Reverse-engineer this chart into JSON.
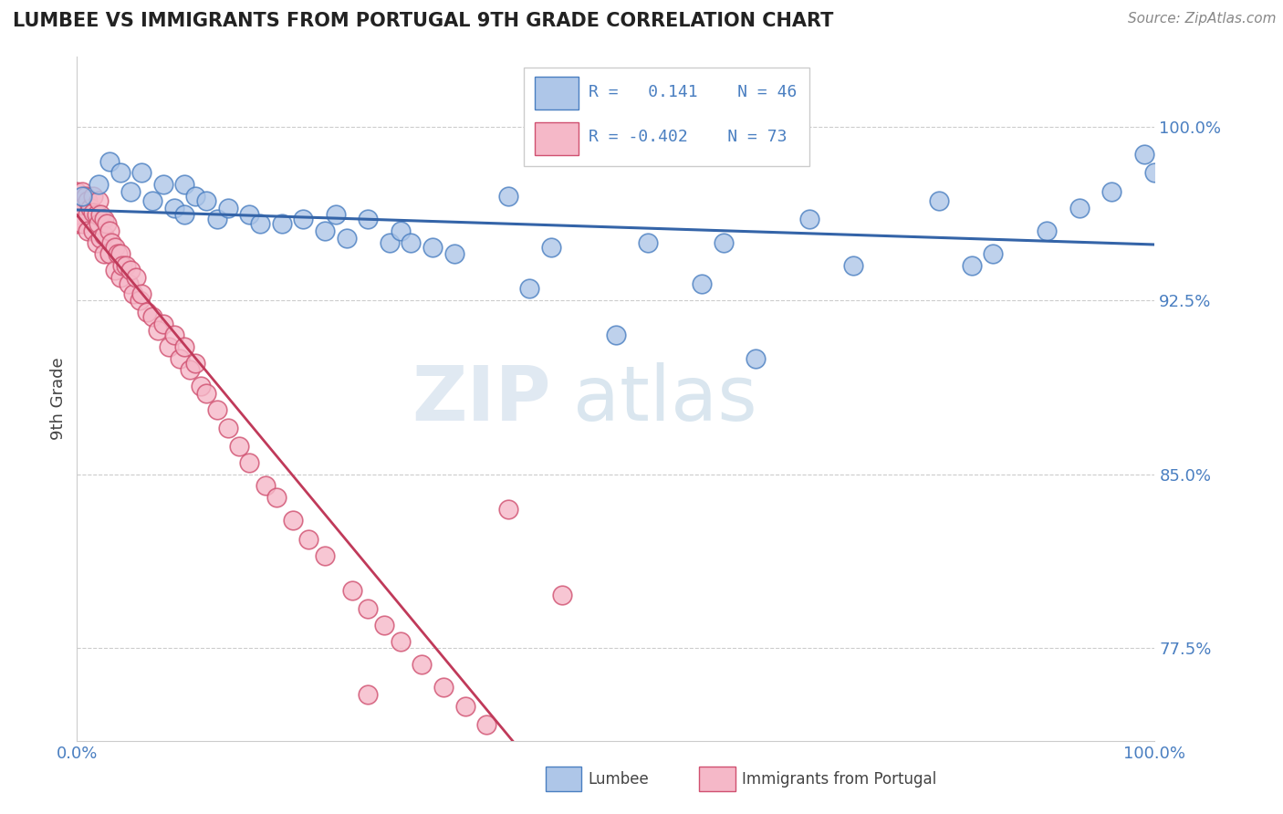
{
  "title": "LUMBEE VS IMMIGRANTS FROM PORTUGAL 9TH GRADE CORRELATION CHART",
  "source_text": "Source: ZipAtlas.com",
  "ylabel": "9th Grade",
  "xlim": [
    0.0,
    1.0
  ],
  "ylim": [
    0.735,
    1.03
  ],
  "yticks": [
    0.775,
    0.85,
    0.925,
    1.0
  ],
  "ytick_labels": [
    "77.5%",
    "85.0%",
    "92.5%",
    "100.0%"
  ],
  "legend_r_blue": "R =   0.141",
  "legend_n_blue": "N = 46",
  "legend_r_pink": "R = -0.402",
  "legend_n_pink": "N = 73",
  "blue_scatter_color": "#aec6e8",
  "blue_edge_color": "#4a7fc1",
  "pink_scatter_color": "#f5b8c8",
  "pink_edge_color": "#d05070",
  "line_blue_color": "#3464a8",
  "line_pink_solid_color": "#c03a5a",
  "line_pink_dash_color": "#d0b0b8",
  "watermark_color": "#d0dff0",
  "title_color": "#222222",
  "axis_label_color": "#444444",
  "tick_label_color": "#4a7fc1",
  "source_color": "#888888",
  "legend_border_color": "#cccccc",
  "blue_x": [
    0.005,
    0.02,
    0.03,
    0.04,
    0.05,
    0.06,
    0.07,
    0.08,
    0.09,
    0.1,
    0.1,
    0.11,
    0.12,
    0.13,
    0.14,
    0.16,
    0.17,
    0.19,
    0.21,
    0.23,
    0.24,
    0.25,
    0.27,
    0.29,
    0.3,
    0.31,
    0.33,
    0.35,
    0.4,
    0.42,
    0.44,
    0.5,
    0.53,
    0.58,
    0.6,
    0.63,
    0.68,
    0.72,
    0.8,
    0.83,
    0.85,
    0.9,
    0.93,
    0.96,
    0.99,
    1.0
  ],
  "blue_y": [
    0.97,
    0.975,
    0.985,
    0.98,
    0.972,
    0.98,
    0.968,
    0.975,
    0.965,
    0.975,
    0.962,
    0.97,
    0.968,
    0.96,
    0.965,
    0.962,
    0.958,
    0.958,
    0.96,
    0.955,
    0.962,
    0.952,
    0.96,
    0.95,
    0.955,
    0.95,
    0.948,
    0.945,
    0.97,
    0.93,
    0.948,
    0.91,
    0.95,
    0.932,
    0.95,
    0.9,
    0.96,
    0.94,
    0.968,
    0.94,
    0.945,
    0.955,
    0.965,
    0.972,
    0.988,
    0.98
  ],
  "pink_x": [
    0.0,
    0.0,
    0.0,
    0.0,
    0.005,
    0.005,
    0.005,
    0.008,
    0.01,
    0.01,
    0.01,
    0.012,
    0.015,
    0.015,
    0.015,
    0.018,
    0.018,
    0.02,
    0.02,
    0.022,
    0.022,
    0.025,
    0.025,
    0.025,
    0.028,
    0.03,
    0.03,
    0.032,
    0.035,
    0.035,
    0.038,
    0.04,
    0.04,
    0.042,
    0.045,
    0.048,
    0.05,
    0.052,
    0.055,
    0.058,
    0.06,
    0.065,
    0.07,
    0.075,
    0.08,
    0.085,
    0.09,
    0.095,
    0.1,
    0.105,
    0.11,
    0.115,
    0.12,
    0.13,
    0.14,
    0.15,
    0.16,
    0.175,
    0.185,
    0.2,
    0.215,
    0.23,
    0.255,
    0.27,
    0.285,
    0.3,
    0.32,
    0.34,
    0.36,
    0.38,
    0.4,
    0.45,
    0.27
  ],
  "pink_y": [
    0.972,
    0.968,
    0.962,
    0.958,
    0.972,
    0.965,
    0.958,
    0.97,
    0.968,
    0.962,
    0.955,
    0.965,
    0.97,
    0.963,
    0.955,
    0.962,
    0.95,
    0.968,
    0.958,
    0.962,
    0.952,
    0.96,
    0.953,
    0.945,
    0.958,
    0.955,
    0.945,
    0.95,
    0.948,
    0.938,
    0.945,
    0.945,
    0.935,
    0.94,
    0.94,
    0.932,
    0.938,
    0.928,
    0.935,
    0.925,
    0.928,
    0.92,
    0.918,
    0.912,
    0.915,
    0.905,
    0.91,
    0.9,
    0.905,
    0.895,
    0.898,
    0.888,
    0.885,
    0.878,
    0.87,
    0.862,
    0.855,
    0.845,
    0.84,
    0.83,
    0.822,
    0.815,
    0.8,
    0.792,
    0.785,
    0.778,
    0.768,
    0.758,
    0.75,
    0.742,
    0.835,
    0.798,
    0.755
  ]
}
